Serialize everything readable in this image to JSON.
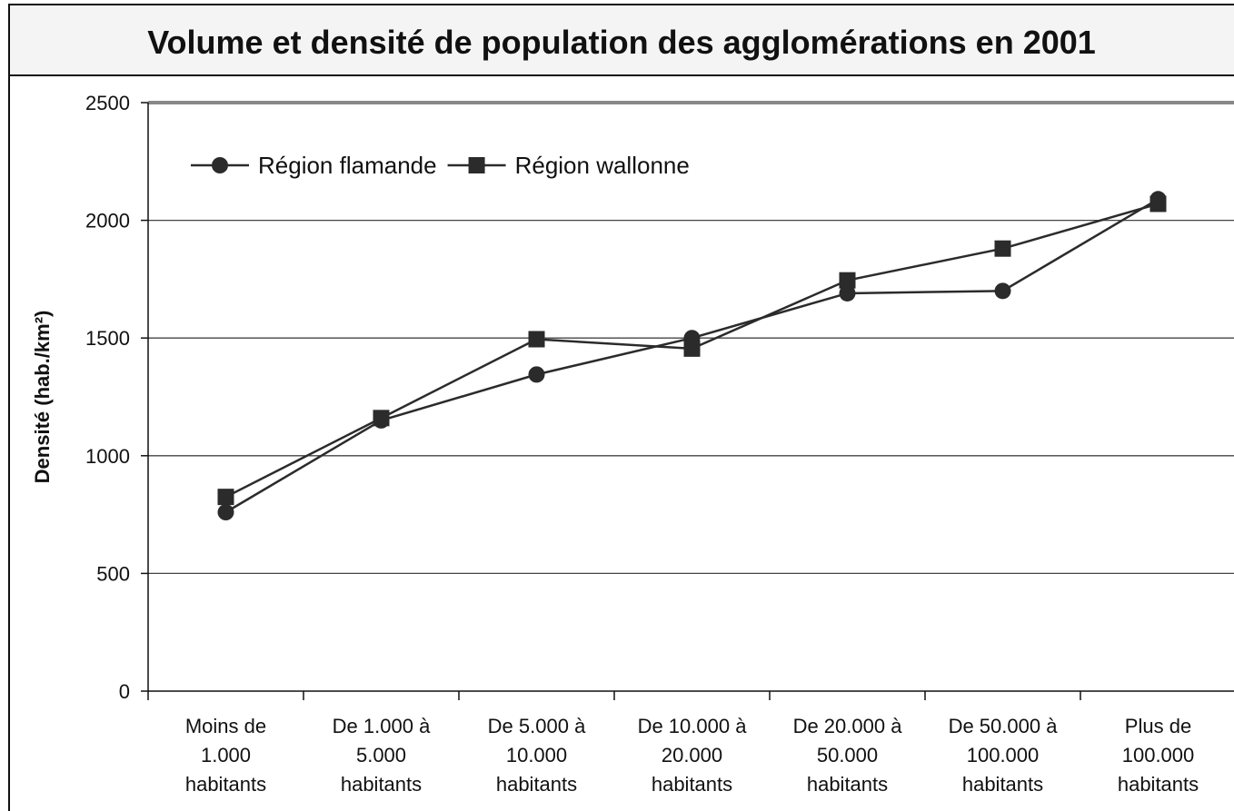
{
  "chart_data": {
    "type": "line",
    "title": "Volume et densité de population des agglomérations en 2001",
    "y_label": "Densité (hab./km²)",
    "categories": [
      "Moins de\n1.000\nhabitants",
      "De 1.000 à\n5.000\nhabitants",
      "De 5.000 à\n10.000\nhabitants",
      "De 10.000 à\n20.000\nhabitants",
      "De 20.000 à\n50.000\nhabitants",
      "De 50.000 à\n100.000\nhabitants",
      "Plus de\n100.000\nhabitants"
    ],
    "series": [
      {
        "name": "Région flamande",
        "color": "#2b2b2b",
        "marker": "circle",
        "values": [
          760,
          1150,
          1345,
          1500,
          1690,
          1700,
          2090
        ]
      },
      {
        "name": "Région wallonne",
        "color": "#2b2b2b",
        "marker": "square",
        "values": [
          825,
          1160,
          1495,
          1455,
          1745,
          1880,
          2070
        ]
      }
    ],
    "ylim": [
      0,
      2500
    ],
    "yticks": [
      0,
      500,
      1000,
      1500,
      2000,
      2500
    ],
    "grid": true,
    "legend": "upper left"
  }
}
